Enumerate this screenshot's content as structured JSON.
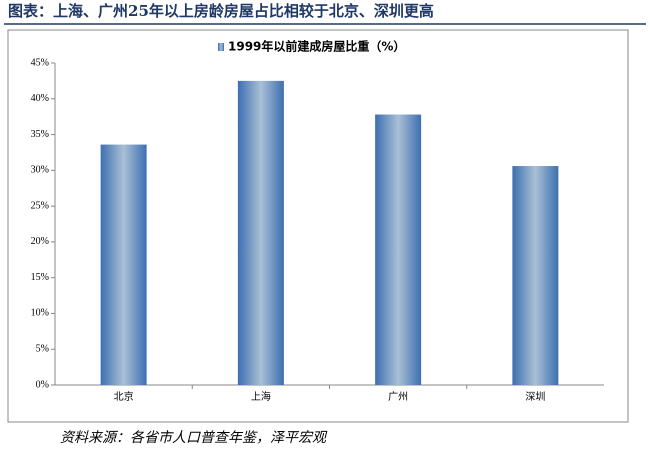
{
  "chart_data": {
    "type": "bar",
    "title": "图表：上海、广州25年以上房龄房屋占比相较于北京、深圳更高",
    "series": [
      {
        "name": "1999年以前建成房屋比重（%）",
        "color": "#4f81bd",
        "values": [
          33.6,
          42.5,
          37.8,
          30.6
        ]
      }
    ],
    "categories": [
      "北京",
      "上海",
      "广州",
      "深圳"
    ],
    "ylim": [
      0,
      45
    ],
    "yticks": [
      {
        "value": 0,
        "label": "0%"
      },
      {
        "value": 5,
        "label": "5%"
      },
      {
        "value": 10,
        "label": "10%"
      },
      {
        "value": 15,
        "label": "15%"
      },
      {
        "value": 20,
        "label": "20%"
      },
      {
        "value": 25,
        "label": "25%"
      },
      {
        "value": 30,
        "label": "30%"
      },
      {
        "value": 35,
        "label": "35%"
      },
      {
        "value": 40,
        "label": "40%"
      },
      {
        "value": 45,
        "label": "45%"
      }
    ],
    "legend_position": "top",
    "source": "资料来源：各省市人口普查年鉴，泽平宏观"
  }
}
